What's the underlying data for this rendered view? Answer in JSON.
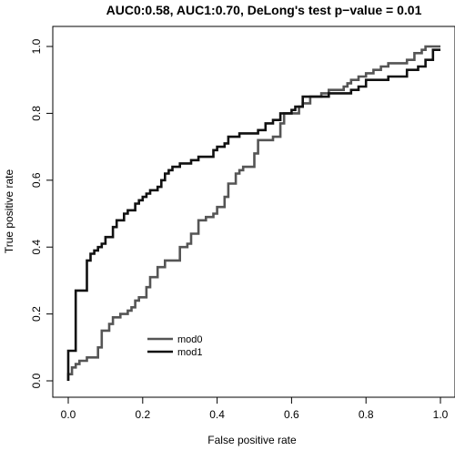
{
  "chart_data": {
    "type": "line",
    "title": "AUC0:0.58, AUC1:0.70, DeLong's test p−value = 0.01",
    "xlabel": "False positive rate",
    "ylabel": "True positive rate",
    "xlim": [
      0,
      1
    ],
    "ylim": [
      0,
      1
    ],
    "x_ticks": [
      "0.0",
      "0.2",
      "0.4",
      "0.6",
      "0.8",
      "1.0"
    ],
    "y_ticks": [
      "0.0",
      "0.2",
      "0.4",
      "0.6",
      "0.8",
      "1.0"
    ],
    "grid": false,
    "legend_position": "bottom-left",
    "series": [
      {
        "name": "mod0",
        "color": "#555555",
        "x": [
          0.0,
          0.0,
          0.01,
          0.01,
          0.02,
          0.02,
          0.03,
          0.03,
          0.05,
          0.05,
          0.08,
          0.08,
          0.09,
          0.09,
          0.11,
          0.11,
          0.12,
          0.12,
          0.14,
          0.14,
          0.16,
          0.16,
          0.17,
          0.17,
          0.18,
          0.18,
          0.19,
          0.19,
          0.21,
          0.21,
          0.22,
          0.22,
          0.24,
          0.24,
          0.26,
          0.26,
          0.3,
          0.3,
          0.32,
          0.32,
          0.33,
          0.33,
          0.35,
          0.35,
          0.37,
          0.37,
          0.39,
          0.39,
          0.4,
          0.4,
          0.42,
          0.42,
          0.43,
          0.43,
          0.45,
          0.45,
          0.46,
          0.46,
          0.47,
          0.47,
          0.5,
          0.5,
          0.51,
          0.51,
          0.55,
          0.55,
          0.57,
          0.57,
          0.58,
          0.58,
          0.62,
          0.62,
          0.63,
          0.63,
          0.65,
          0.65,
          0.68,
          0.68,
          0.7,
          0.7,
          0.74,
          0.74,
          0.75,
          0.75,
          0.76,
          0.76,
          0.78,
          0.78,
          0.8,
          0.8,
          0.82,
          0.82,
          0.84,
          0.84,
          0.86,
          0.86,
          0.91,
          0.91,
          0.93,
          0.93,
          0.95,
          0.95,
          0.96,
          0.96,
          1.0
        ],
        "y": [
          0.0,
          0.02,
          0.02,
          0.04,
          0.04,
          0.05,
          0.05,
          0.06,
          0.06,
          0.07,
          0.07,
          0.1,
          0.1,
          0.15,
          0.15,
          0.17,
          0.17,
          0.19,
          0.19,
          0.2,
          0.2,
          0.21,
          0.21,
          0.22,
          0.22,
          0.24,
          0.24,
          0.25,
          0.25,
          0.28,
          0.28,
          0.31,
          0.31,
          0.34,
          0.34,
          0.36,
          0.36,
          0.4,
          0.4,
          0.41,
          0.41,
          0.44,
          0.44,
          0.48,
          0.48,
          0.49,
          0.49,
          0.5,
          0.5,
          0.52,
          0.52,
          0.55,
          0.55,
          0.59,
          0.59,
          0.62,
          0.62,
          0.63,
          0.63,
          0.64,
          0.64,
          0.68,
          0.68,
          0.72,
          0.72,
          0.73,
          0.73,
          0.77,
          0.77,
          0.8,
          0.8,
          0.82,
          0.82,
          0.83,
          0.83,
          0.85,
          0.85,
          0.86,
          0.86,
          0.87,
          0.87,
          0.88,
          0.88,
          0.89,
          0.89,
          0.9,
          0.9,
          0.91,
          0.91,
          0.92,
          0.92,
          0.93,
          0.93,
          0.94,
          0.94,
          0.95,
          0.95,
          0.96,
          0.96,
          0.98,
          0.98,
          0.99,
          0.99,
          1.0,
          1.0
        ]
      },
      {
        "name": "mod1",
        "color": "#111111",
        "x": [
          0.0,
          0.0,
          0.02,
          0.02,
          0.05,
          0.05,
          0.06,
          0.06,
          0.07,
          0.07,
          0.08,
          0.08,
          0.09,
          0.09,
          0.1,
          0.1,
          0.12,
          0.12,
          0.13,
          0.13,
          0.15,
          0.15,
          0.16,
          0.16,
          0.18,
          0.18,
          0.19,
          0.19,
          0.2,
          0.2,
          0.21,
          0.21,
          0.22,
          0.22,
          0.24,
          0.24,
          0.25,
          0.25,
          0.26,
          0.26,
          0.27,
          0.27,
          0.28,
          0.28,
          0.3,
          0.3,
          0.33,
          0.33,
          0.35,
          0.35,
          0.39,
          0.39,
          0.4,
          0.4,
          0.42,
          0.42,
          0.43,
          0.43,
          0.46,
          0.46,
          0.51,
          0.51,
          0.53,
          0.53,
          0.55,
          0.55,
          0.57,
          0.57,
          0.6,
          0.6,
          0.61,
          0.61,
          0.63,
          0.63,
          0.7,
          0.7,
          0.76,
          0.76,
          0.78,
          0.78,
          0.8,
          0.8,
          0.86,
          0.86,
          0.91,
          0.91,
          0.94,
          0.94,
          0.96,
          0.96,
          0.98,
          0.98,
          1.0
        ],
        "y": [
          0.0,
          0.09,
          0.09,
          0.27,
          0.27,
          0.36,
          0.36,
          0.38,
          0.38,
          0.39,
          0.39,
          0.4,
          0.4,
          0.41,
          0.41,
          0.43,
          0.43,
          0.46,
          0.46,
          0.48,
          0.48,
          0.5,
          0.5,
          0.51,
          0.51,
          0.53,
          0.53,
          0.54,
          0.54,
          0.55,
          0.55,
          0.56,
          0.56,
          0.57,
          0.57,
          0.58,
          0.58,
          0.6,
          0.6,
          0.62,
          0.62,
          0.63,
          0.63,
          0.64,
          0.64,
          0.65,
          0.65,
          0.66,
          0.66,
          0.67,
          0.67,
          0.69,
          0.69,
          0.7,
          0.7,
          0.71,
          0.71,
          0.73,
          0.73,
          0.74,
          0.74,
          0.75,
          0.75,
          0.77,
          0.77,
          0.78,
          0.78,
          0.8,
          0.8,
          0.81,
          0.81,
          0.82,
          0.82,
          0.85,
          0.85,
          0.86,
          0.86,
          0.87,
          0.87,
          0.88,
          0.88,
          0.9,
          0.9,
          0.91,
          0.91,
          0.93,
          0.93,
          0.94,
          0.94,
          0.96,
          0.96,
          0.99,
          0.99
        ]
      }
    ]
  }
}
